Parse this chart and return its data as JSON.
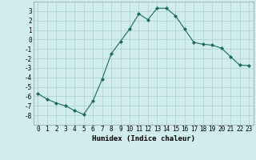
{
  "x": [
    0,
    1,
    2,
    3,
    4,
    5,
    6,
    7,
    8,
    9,
    10,
    11,
    12,
    13,
    14,
    15,
    16,
    17,
    18,
    19,
    20,
    21,
    22,
    23
  ],
  "y": [
    -5.7,
    -6.3,
    -6.7,
    -7.0,
    -7.5,
    -7.9,
    -6.5,
    -4.2,
    -1.5,
    -0.2,
    1.1,
    2.7,
    2.1,
    3.3,
    3.3,
    2.5,
    1.1,
    -0.3,
    -0.5,
    -0.6,
    -0.9,
    -1.8,
    -2.7,
    -2.75
  ],
  "line_color": "#1a6b5a",
  "marker": "D",
  "marker_size": 2.0,
  "bg_color": "#d0ecec",
  "grid_color": "#aacfcf",
  "xlabel": "Humidex (Indice chaleur)",
  "xlim": [
    -0.5,
    23.5
  ],
  "ylim": [
    -9,
    4
  ],
  "yticks": [
    -8,
    -7,
    -6,
    -5,
    -4,
    -3,
    -2,
    -1,
    0,
    1,
    2,
    3
  ],
  "xticks": [
    0,
    1,
    2,
    3,
    4,
    5,
    6,
    7,
    8,
    9,
    10,
    11,
    12,
    13,
    14,
    15,
    16,
    17,
    18,
    19,
    20,
    21,
    22,
    23
  ],
  "xlabel_fontsize": 6.5,
  "tick_fontsize": 5.5,
  "linewidth": 0.8
}
